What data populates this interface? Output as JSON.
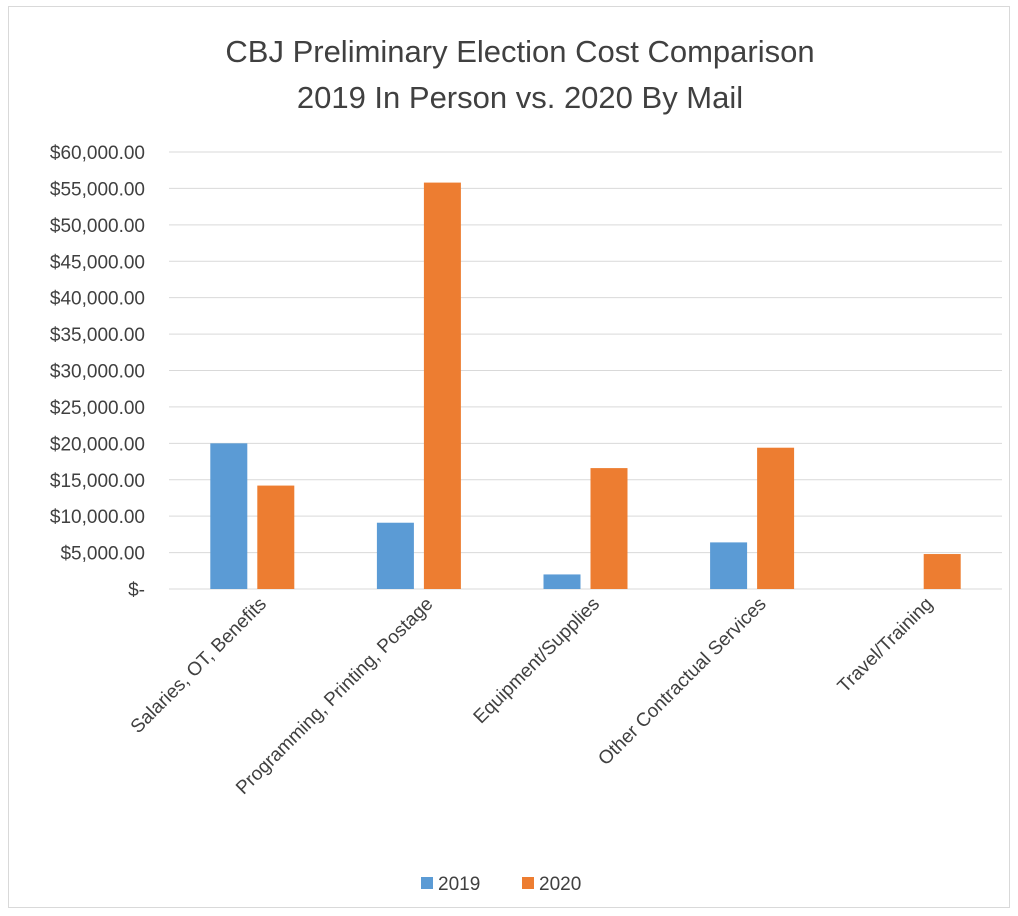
{
  "chart_data": {
    "type": "bar",
    "title": "CBJ Preliminary Election Cost Comparison",
    "subtitle": "2019 In Person vs. 2020 By Mail",
    "categories": [
      "Salaries, OT, Benefits",
      "Programming, Printing, Postage",
      "Equipment/Supplies",
      "Other Contractual Services",
      "Travel/Training"
    ],
    "series": [
      {
        "name": "2019",
        "color": "#5b9bd5",
        "values": [
          20000,
          9100,
          2000,
          6400,
          0
        ]
      },
      {
        "name": "2020",
        "color": "#ed7d31",
        "values": [
          14200,
          55800,
          16600,
          19400,
          4800
        ]
      }
    ],
    "y_ticks": [
      {
        "value": 0,
        "label": "$-"
      },
      {
        "value": 5000,
        "label": "$5,000.00"
      },
      {
        "value": 10000,
        "label": "$10,000.00"
      },
      {
        "value": 15000,
        "label": "$15,000.00"
      },
      {
        "value": 20000,
        "label": "$20,000.00"
      },
      {
        "value": 25000,
        "label": "$25,000.00"
      },
      {
        "value": 30000,
        "label": "$30,000.00"
      },
      {
        "value": 35000,
        "label": "$35,000.00"
      },
      {
        "value": 40000,
        "label": "$40,000.00"
      },
      {
        "value": 45000,
        "label": "$45,000.00"
      },
      {
        "value": 50000,
        "label": "$50,000.00"
      },
      {
        "value": 55000,
        "label": "$55,000.00"
      },
      {
        "value": 60000,
        "label": "$60,000.00"
      }
    ],
    "ylim": [
      0,
      60000
    ],
    "grid": true,
    "legend_position": "bottom",
    "colors": {
      "gridline": "#d9d9d9",
      "text": "#404040"
    }
  }
}
